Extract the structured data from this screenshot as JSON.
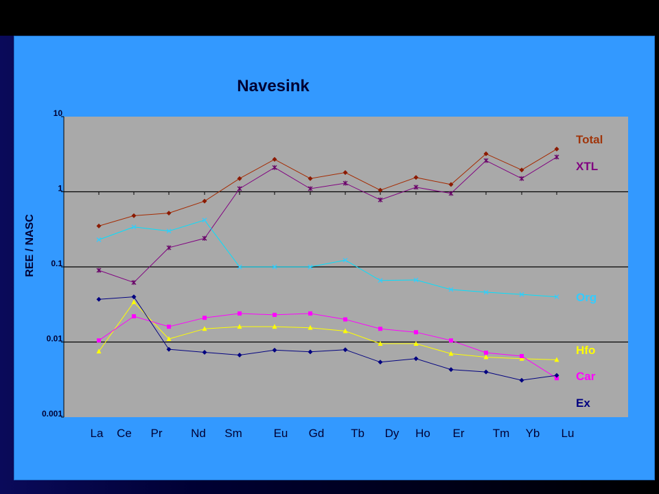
{
  "chart_data": {
    "type": "line",
    "title": "Navesink",
    "xlabel": "",
    "ylabel": "REE / NASC",
    "y_scale": "log",
    "ylim": [
      0.001,
      10
    ],
    "y_ticks": [
      "10",
      "1",
      "0.1",
      "0.01",
      "0.001"
    ],
    "y_tick_values": [
      10,
      1,
      0.1,
      0.01,
      0.001
    ],
    "categories": [
      "La",
      "Ce",
      "Pr",
      "Nd",
      "Sm",
      "Eu",
      "Gd",
      "Tb",
      "Dy",
      "Ho",
      "Er",
      "Tm",
      "Yb",
      "Lu"
    ],
    "grid": "horizontal major lines at decades",
    "legend_placement": "right",
    "series": [
      {
        "name": "Total",
        "color": "#8b1a00",
        "line_color": "#a52a00",
        "marker": "diamond",
        "values": [
          0.35,
          0.48,
          0.52,
          0.75,
          1.5,
          2.7,
          1.5,
          1.8,
          1.05,
          1.55,
          1.25,
          3.2,
          1.95,
          3.7
        ]
      },
      {
        "name": "XTL",
        "color": "#660066",
        "line_color": "#800080",
        "marker": "star",
        "values": [
          0.09,
          0.062,
          0.18,
          0.24,
          1.1,
          2.1,
          1.1,
          1.3,
          0.78,
          1.15,
          0.95,
          2.6,
          1.5,
          2.9
        ]
      },
      {
        "name": "Org",
        "color": "#33ccff",
        "line_color": "#00e0ff",
        "marker": "cross",
        "values": [
          0.23,
          0.34,
          0.3,
          0.42,
          0.1,
          0.1,
          0.1,
          0.123,
          0.066,
          0.067,
          0.05,
          0.046,
          0.043,
          0.04
        ]
      },
      {
        "name": "Hfo",
        "color": "#ffff00",
        "line_color": "#ffff00",
        "marker": "triangle",
        "values": [
          0.0075,
          0.034,
          0.011,
          0.015,
          0.016,
          0.016,
          0.0155,
          0.014,
          0.0095,
          0.0095,
          0.007,
          0.0063,
          0.006,
          0.0058
        ]
      },
      {
        "name": "Car",
        "color": "#ff00ff",
        "line_color": "#ff00ff",
        "marker": "square",
        "values": [
          0.0105,
          0.022,
          0.016,
          0.021,
          0.024,
          0.023,
          0.024,
          0.02,
          0.015,
          0.0135,
          0.0105,
          0.0072,
          0.0065,
          0.0033
        ]
      },
      {
        "name": "Ex",
        "color": "#000080",
        "line_color": "#000080",
        "marker": "diamond",
        "values": [
          0.037,
          0.04,
          0.008,
          0.0073,
          0.0067,
          0.0078,
          0.0074,
          0.0079,
          0.0054,
          0.006,
          0.0043,
          0.004,
          0.0031,
          0.0036
        ]
      }
    ]
  }
}
